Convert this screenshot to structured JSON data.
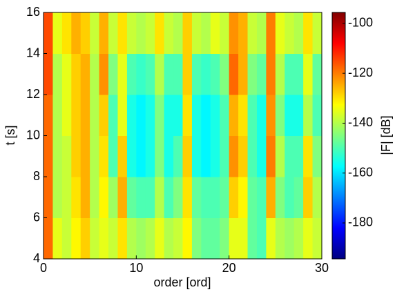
{
  "chart_data": {
    "type": "heatmap",
    "colormap": "jet",
    "xlabel": "order [ord]",
    "ylabel": "t [s]",
    "colorbar_label": "|F| [dB]",
    "x": [
      0.5,
      1.5,
      2.5,
      3.5,
      4.5,
      5.5,
      6.5,
      7.5,
      8.5,
      9.5,
      10.5,
      11.5,
      12.5,
      13.5,
      14.5,
      15.5,
      16.5,
      17.5,
      18.5,
      19.5,
      20.5,
      21.5,
      22.5,
      23.5,
      24.5,
      25.5,
      26.5,
      27.5,
      28.5,
      29.5
    ],
    "y": [
      5,
      7,
      9,
      11,
      13,
      15
    ],
    "z": [
      [
        -118,
        -135,
        -138,
        -132,
        -128,
        -138,
        -135,
        -138,
        -130,
        -140,
        -142,
        -140,
        -135,
        -140,
        -138,
        -132,
        -145,
        -148,
        -148,
        -145,
        -135,
        -135,
        -148,
        -150,
        -135,
        -140,
        -142,
        -140,
        -135,
        -138
      ],
      [
        -118,
        -140,
        -138,
        -130,
        -125,
        -140,
        -132,
        -142,
        -125,
        -148,
        -150,
        -150,
        -140,
        -150,
        -145,
        -130,
        -148,
        -150,
        -150,
        -148,
        -128,
        -132,
        -148,
        -150,
        -125,
        -145,
        -150,
        -148,
        -128,
        -140
      ],
      [
        -118,
        -140,
        -138,
        -128,
        -125,
        -140,
        -130,
        -150,
        -128,
        -155,
        -158,
        -155,
        -145,
        -155,
        -150,
        -128,
        -155,
        -158,
        -155,
        -150,
        -122,
        -128,
        -150,
        -155,
        -120,
        -140,
        -150,
        -150,
        -130,
        -145
      ],
      [
        -118,
        -140,
        -135,
        -128,
        -125,
        -140,
        -128,
        -150,
        -135,
        -155,
        -158,
        -155,
        -145,
        -155,
        -155,
        -130,
        -155,
        -158,
        -155,
        -150,
        -125,
        -130,
        -150,
        -155,
        -122,
        -145,
        -155,
        -155,
        -140,
        -150
      ],
      [
        -115,
        -140,
        -135,
        -128,
        -125,
        -140,
        -122,
        -145,
        -135,
        -150,
        -152,
        -150,
        -140,
        -150,
        -150,
        -128,
        -150,
        -152,
        -150,
        -145,
        -118,
        -125,
        -145,
        -148,
        -120,
        -140,
        -150,
        -150,
        -135,
        -148
      ],
      [
        -115,
        -135,
        -130,
        -125,
        -128,
        -138,
        -125,
        -138,
        -130,
        -138,
        -140,
        -138,
        -130,
        -138,
        -140,
        -128,
        -138,
        -140,
        -135,
        -138,
        -122,
        -125,
        -138,
        -140,
        -120,
        -135,
        -138,
        -140,
        -130,
        -138
      ]
    ],
    "xlim": [
      0,
      30
    ],
    "xticks": [
      0,
      10,
      20,
      30
    ],
    "ylim": [
      4,
      16
    ],
    "yticks": [
      4,
      6,
      8,
      10,
      12,
      14,
      16
    ],
    "clim": [
      -194.4,
      -95.6
    ],
    "cticks": [
      -100,
      -120,
      -140,
      -160,
      -180
    ]
  }
}
